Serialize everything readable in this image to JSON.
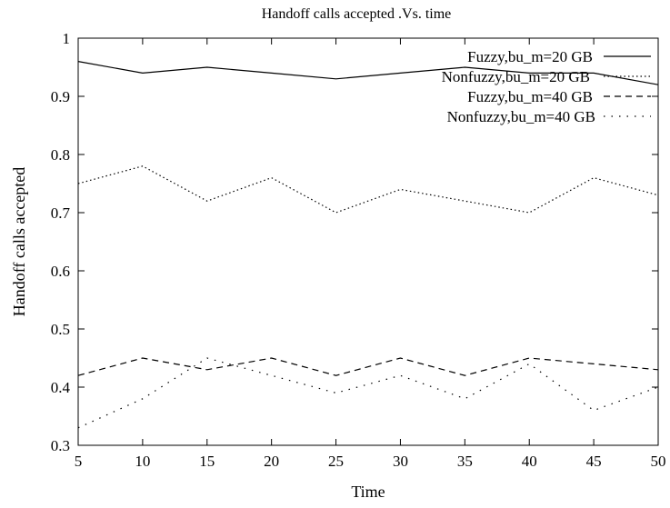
{
  "chart_data": {
    "type": "line",
    "title": "Handoff calls accepted .Vs. time",
    "xlabel": "Time",
    "ylabel": "Handoff calls accepted",
    "x": [
      5,
      10,
      15,
      20,
      25,
      30,
      35,
      40,
      45,
      50
    ],
    "xlim": [
      5,
      50
    ],
    "ylim": [
      0.3,
      1.0
    ],
    "xticks": [
      "5",
      "10",
      "15",
      "20",
      "25",
      "30",
      "35",
      "40",
      "45",
      "50"
    ],
    "yticks": [
      "0.3",
      "0.4",
      "0.5",
      "0.6",
      "0.7",
      "0.8",
      "0.9",
      "1"
    ],
    "grid": false,
    "legend_position": "top-right",
    "series": [
      {
        "name": "Fuzzy,bu_m=20 GB",
        "style": "solid",
        "color": "#000000",
        "values": [
          0.96,
          0.94,
          0.95,
          0.94,
          0.93,
          0.94,
          0.95,
          0.94,
          0.94,
          0.92
        ]
      },
      {
        "name": "Nonfuzzy,bu_m=20 GB",
        "style": "dotted",
        "color": "#000000",
        "values": [
          0.75,
          0.78,
          0.72,
          0.76,
          0.7,
          0.74,
          0.72,
          0.7,
          0.76,
          0.73
        ]
      },
      {
        "name": "Fuzzy,bu_m=40 GB",
        "style": "dashed",
        "color": "#000000",
        "values": [
          0.42,
          0.45,
          0.43,
          0.45,
          0.42,
          0.45,
          0.42,
          0.45,
          0.44,
          0.43
        ]
      },
      {
        "name": "Nonfuzzy,bu_m=40 GB",
        "style": "sparse-dotted",
        "color": "#000000",
        "values": [
          0.33,
          0.38,
          0.45,
          0.42,
          0.39,
          0.42,
          0.38,
          0.44,
          0.36,
          0.4
        ]
      }
    ]
  }
}
